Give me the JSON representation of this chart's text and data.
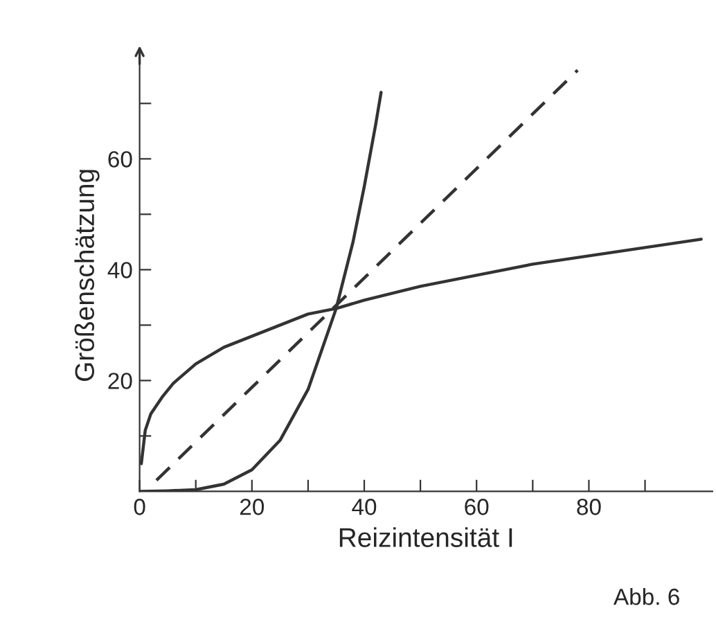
{
  "chart_data": {
    "type": "line",
    "xlabel": "Reizintensität I",
    "ylabel": "Größenschätzung",
    "annotations": [
      "Abb. 6"
    ],
    "xlim": [
      0,
      102
    ],
    "ylim": [
      0,
      78
    ],
    "xticks": [
      0,
      {
        "value": 10,
        "label": null
      },
      20,
      {
        "value": 30,
        "label": null
      },
      40,
      {
        "value": 50,
        "label": null
      },
      60,
      {
        "value": 70,
        "label": null
      },
      80,
      {
        "value": 90,
        "label": null
      }
    ],
    "yticks": [
      {
        "value": 10,
        "label": null
      },
      20,
      {
        "value": 30,
        "label": null
      },
      40,
      {
        "value": 50,
        "label": null
      },
      60,
      {
        "value": 70,
        "label": null
      }
    ],
    "grid": false,
    "legend": false,
    "series": [
      {
        "color": "#333333",
        "line_style": "solid",
        "x": [
          0.3,
          1,
          2,
          4,
          6,
          10,
          15,
          20,
          25,
          30,
          35,
          40,
          50,
          60,
          70,
          80,
          90,
          100
        ],
        "values": [
          5,
          11,
          14,
          17,
          19.5,
          23,
          26,
          28,
          30,
          32,
          33,
          34.5,
          37,
          39,
          41,
          42.5,
          44,
          45.5
        ]
      },
      {
        "color": "#333333",
        "line_style": "solid",
        "x": [
          0,
          5,
          10,
          15,
          20,
          25,
          30,
          35,
          38,
          40,
          42,
          43
        ],
        "values": [
          0,
          0.1,
          0.3,
          1.3,
          3.9,
          9.2,
          18.4,
          33,
          45,
          55,
          66,
          72
        ]
      },
      {
        "color": "#333333",
        "line_style": "dashed",
        "x": [
          3,
          78
        ],
        "values": [
          2,
          76
        ]
      }
    ]
  }
}
